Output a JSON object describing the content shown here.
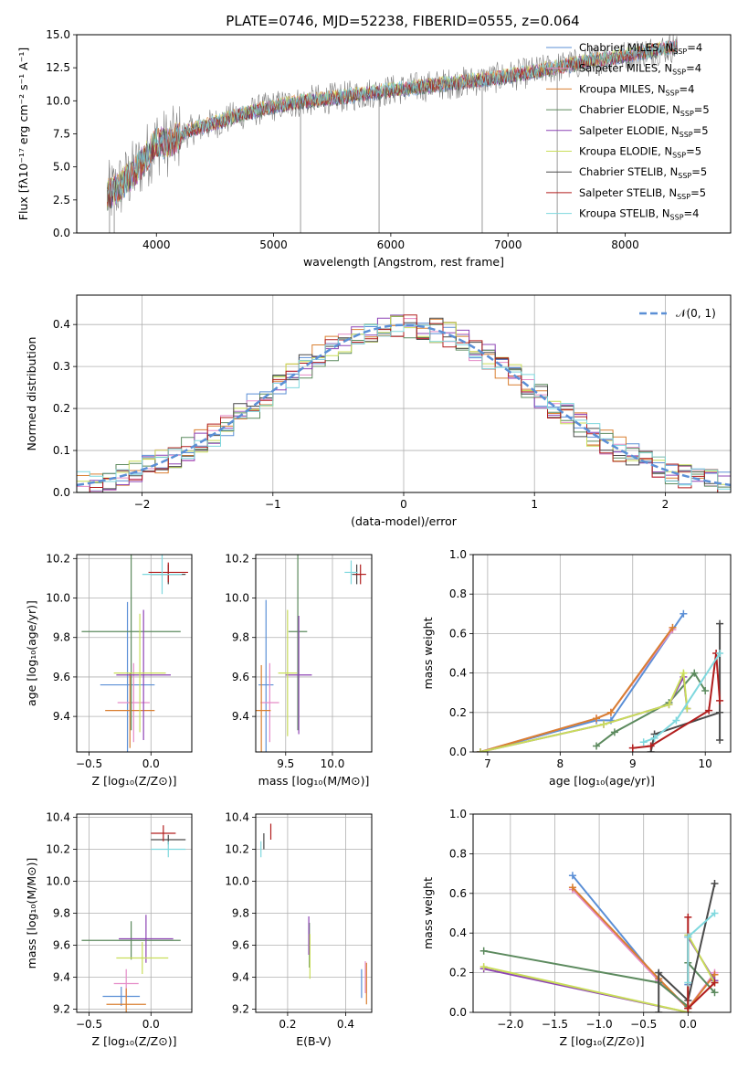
{
  "figure_title": "PLATE=0746, MJD=52238, FIBERID=0555, z=0.064",
  "colors": {
    "chabrier_miles": "#5b8fd6",
    "salpeter_miles": "#e58cc8",
    "kroupa_miles": "#d97f30",
    "chabrier_elodie": "#5c8a5e",
    "salpeter_elodie": "#8e44b5",
    "kroupa_elodie": "#c9dd59",
    "chabrier_stelib": "#4a4a4a",
    "salpeter_stelib": "#b21e1e",
    "kroupa_stelib": "#7fd8de",
    "data_spectrum": "#808080",
    "grid": "#b0b0b0"
  },
  "chart_data": [
    {
      "id": "spectrum",
      "type": "line",
      "title": "PLATE=0746, MJD=52238, FIBERID=0555, z=0.064",
      "xlabel": "wavelength [Angstrom, rest frame]",
      "ylabel": "Flux [fλ10⁻¹⁷ erg cm⁻² s⁻¹ A⁻¹]",
      "xlim": [
        3320,
        8900
      ],
      "ylim": [
        0,
        15
      ],
      "xticks": [
        4000,
        5000,
        6000,
        7000,
        8000
      ],
      "yticks": [
        0.0,
        2.5,
        5.0,
        7.5,
        10.0,
        12.5,
        15.0
      ],
      "ytick_labels": [
        "0.0",
        "2.5",
        "5.0",
        "7.5",
        "10.0",
        "12.5",
        "15.0"
      ],
      "grid": false,
      "legend_position": "right",
      "x_range_observed": [
        3580,
        8450
      ],
      "continuum": {
        "x": [
          3580,
          3700,
          3800,
          3900,
          4000,
          4100,
          4300,
          4500,
          4700,
          5000,
          5300,
          5600,
          5900,
          6200,
          6500,
          6800,
          7100,
          7400,
          7700,
          8000,
          8300,
          8450
        ],
        "y": [
          2.8,
          3.6,
          4.5,
          5.6,
          6.9,
          6.8,
          7.8,
          8.3,
          8.9,
          9.6,
          10.0,
          10.3,
          10.7,
          11.0,
          11.3,
          11.6,
          12.0,
          12.5,
          13.0,
          13.4,
          13.9,
          14.1
        ]
      },
      "series": [
        {
          "name": "Chabrier MILES, N_SSP=4",
          "color_key": "chabrier_miles"
        },
        {
          "name": "Salpeter MILES, N_SSP=4",
          "color_key": "salpeter_miles"
        },
        {
          "name": "Kroupa MILES, N_SSP=4",
          "color_key": "kroupa_miles"
        },
        {
          "name": "Chabrier ELODIE, N_SSP=5",
          "color_key": "chabrier_elodie"
        },
        {
          "name": "Salpeter ELODIE, N_SSP=5",
          "color_key": "salpeter_elodie"
        },
        {
          "name": "Kroupa ELODIE, N_SSP=5",
          "color_key": "kroupa_elodie"
        },
        {
          "name": "Chabrier STELIB, N_SSP=5",
          "color_key": "chabrier_stelib"
        },
        {
          "name": "Salpeter STELIB, N_SSP=5",
          "color_key": "salpeter_stelib"
        },
        {
          "name": "Kroupa STELIB, N_SSP=4",
          "color_key": "kroupa_stelib"
        }
      ],
      "legend_labels": [
        {
          "pre": "Chabrier MILES, N",
          "sub": "SSP",
          "post": "=4"
        },
        {
          "pre": "Salpeter MILES, N",
          "sub": "SSP",
          "post": "=4"
        },
        {
          "pre": "Kroupa MILES, N",
          "sub": "SSP",
          "post": "=4"
        },
        {
          "pre": "Chabrier ELODIE, N",
          "sub": "SSP",
          "post": "=5"
        },
        {
          "pre": "Salpeter ELODIE, N",
          "sub": "SSP",
          "post": "=5"
        },
        {
          "pre": "Kroupa ELODIE, N",
          "sub": "SSP",
          "post": "=5"
        },
        {
          "pre": "Chabrier STELIB, N",
          "sub": "SSP",
          "post": "=5"
        },
        {
          "pre": "Salpeter STELIB, N",
          "sub": "SSP",
          "post": "=5"
        },
        {
          "pre": "Kroupa STELIB, N",
          "sub": "SSP",
          "post": "=4"
        }
      ]
    },
    {
      "id": "residuals",
      "type": "line",
      "xlabel": "(data-model)/error",
      "ylabel": "Normed distribution",
      "xlim": [
        -2.5,
        2.5
      ],
      "ylim": [
        0,
        0.47
      ],
      "xticks": [
        -2,
        -1,
        0,
        1,
        2
      ],
      "xtick_labels": [
        "−2",
        "−1",
        "0",
        "1",
        "2"
      ],
      "yticks": [
        0.0,
        0.1,
        0.2,
        0.3,
        0.4
      ],
      "ytick_labels": [
        "0.0",
        "0.1",
        "0.2",
        "0.3",
        "0.4"
      ],
      "grid": true,
      "legend_position": "top-right",
      "gaussian_label": "𝒩(0, 1)",
      "bin_width": 0.1
    },
    {
      "id": "age_vs_Z",
      "type": "scatter",
      "xlabel": "Z [log₁₀(Z/Z⊙)]",
      "ylabel": "age  [log₁₀(age/yr)]",
      "xlim": [
        -0.6,
        0.33
      ],
      "ylim": [
        9.22,
        10.22
      ],
      "xticks": [
        -0.5,
        0.0
      ],
      "xtick_labels": [
        "−0.5",
        "0.0"
      ],
      "yticks": [
        9.4,
        9.6,
        9.8,
        10.0,
        10.2
      ],
      "ytick_labels": [
        "9.4",
        "9.6",
        "9.8",
        "10.0",
        "10.2"
      ],
      "grid": true,
      "points": [
        {
          "c": "chabrier_miles",
          "x": -0.19,
          "xe": 0.22,
          "y": 9.56,
          "ye": 0.42
        },
        {
          "c": "salpeter_miles",
          "x": -0.14,
          "xe": 0.13,
          "y": 9.47,
          "ye": 0.2
        },
        {
          "c": "kroupa_miles",
          "x": -0.17,
          "xe": 0.2,
          "y": 9.43,
          "ye": 0.19
        },
        {
          "c": "chabrier_elodie",
          "x": -0.16,
          "xe": 0.4,
          "y": 9.83,
          "ye": 0.5
        },
        {
          "c": "salpeter_elodie",
          "x": -0.06,
          "xe": 0.22,
          "y": 9.61,
          "ye": 0.33
        },
        {
          "c": "kroupa_elodie",
          "x": -0.09,
          "xe": 0.21,
          "y": 9.62,
          "ye": 0.3
        },
        {
          "c": "chabrier_stelib",
          "x": 0.14,
          "xe": 0.14,
          "y": 10.12,
          "ye": 0.05
        },
        {
          "c": "salpeter_stelib",
          "x": 0.14,
          "xe": 0.16,
          "y": 10.13,
          "ye": 0.05
        },
        {
          "c": "kroupa_stelib",
          "x": 0.09,
          "xe": 0.16,
          "y": 10.12,
          "ye": 0.1
        }
      ]
    },
    {
      "id": "age_vs_mass",
      "type": "scatter",
      "xlabel": "mass [log₁₀(M/M⊙)]",
      "ylabel": "",
      "xlim": [
        9.18,
        10.42
      ],
      "ylim": [
        9.22,
        10.22
      ],
      "xticks": [
        9.5,
        10.0
      ],
      "xtick_labels": [
        "9.5",
        "10.0"
      ],
      "yticks": [
        9.4,
        9.6,
        9.8,
        10.0,
        10.2
      ],
      "ytick_labels": [
        "9.4",
        "9.6",
        "9.8",
        "10.0",
        "10.2"
      ],
      "grid": true,
      "points": [
        {
          "c": "chabrier_miles",
          "x": 9.29,
          "xe": 0.08,
          "y": 9.56,
          "ye": 0.43
        },
        {
          "c": "salpeter_miles",
          "x": 9.33,
          "xe": 0.1,
          "y": 9.47,
          "ye": 0.2
        },
        {
          "c": "kroupa_miles",
          "x": 9.24,
          "xe": 0.1,
          "y": 9.43,
          "ye": 0.23
        },
        {
          "c": "chabrier_elodie",
          "x": 9.63,
          "xe": 0.1,
          "y": 9.83,
          "ye": 0.5
        },
        {
          "c": "salpeter_elodie",
          "x": 9.64,
          "xe": 0.14,
          "y": 9.61,
          "ye": 0.3
        },
        {
          "c": "kroupa_elodie",
          "x": 9.52,
          "xe": 0.1,
          "y": 9.62,
          "ye": 0.32
        },
        {
          "c": "chabrier_stelib",
          "x": 10.26,
          "xe": 0.05,
          "y": 10.12,
          "ye": 0.05
        },
        {
          "c": "salpeter_stelib",
          "x": 10.3,
          "xe": 0.06,
          "y": 10.12,
          "ye": 0.05
        },
        {
          "c": "kroupa_stelib",
          "x": 10.2,
          "xe": 0.07,
          "y": 10.13,
          "ye": 0.06
        }
      ]
    },
    {
      "id": "weight_vs_age",
      "type": "line",
      "xlabel": "age  [log₁₀(age/yr)]",
      "ylabel": "mass weight",
      "xlim": [
        6.8,
        10.35
      ],
      "ylim": [
        0,
        1
      ],
      "xticks": [
        7,
        8,
        9,
        10
      ],
      "xtick_labels": [
        "7",
        "8",
        "9",
        "10"
      ],
      "yticks": [
        0.0,
        0.2,
        0.4,
        0.6,
        0.8,
        1.0
      ],
      "ytick_labels": [
        "0.0",
        "0.2",
        "0.4",
        "0.6",
        "0.8",
        "1.0"
      ],
      "grid": true,
      "series": [
        {
          "c": "chabrier_miles",
          "x": [
            6.9,
            8.5,
            8.7,
            9.7
          ],
          "y": [
            0.0,
            0.16,
            0.16,
            0.7
          ]
        },
        {
          "c": "salpeter_miles",
          "x": [
            6.9,
            8.5,
            8.7,
            9.55
          ],
          "y": [
            0.0,
            0.17,
            0.2,
            0.62
          ]
        },
        {
          "c": "kroupa_miles",
          "x": [
            6.9,
            8.5,
            8.7,
            9.55
          ],
          "y": [
            0.0,
            0.17,
            0.2,
            0.63
          ]
        },
        {
          "c": "chabrier_elodie",
          "x": [
            8.5,
            8.75,
            9.5,
            9.85,
            10.0
          ],
          "y": [
            0.03,
            0.1,
            0.25,
            0.4,
            0.31
          ]
        },
        {
          "c": "salpeter_elodie",
          "x": [
            6.9,
            8.6,
            9.5,
            9.7,
            9.75
          ],
          "y": [
            0.0,
            0.14,
            0.24,
            0.38,
            0.22
          ]
        },
        {
          "c": "kroupa_elodie",
          "x": [
            6.9,
            8.6,
            9.5,
            9.7,
            9.75
          ],
          "y": [
            0.0,
            0.14,
            0.24,
            0.4,
            0.22
          ]
        },
        {
          "c": "chabrier_stelib",
          "x": [
            9.25,
            9.3,
            10.2,
            10.2,
            10.2
          ],
          "y": [
            0.0,
            0.09,
            0.2,
            0.65,
            0.06
          ]
        },
        {
          "c": "salpeter_stelib",
          "x": [
            9.0,
            9.25,
            10.05,
            10.15,
            10.2
          ],
          "y": [
            0.02,
            0.03,
            0.21,
            0.5,
            0.26
          ]
        },
        {
          "c": "kroupa_stelib",
          "x": [
            9.15,
            9.3,
            9.6,
            10.2
          ],
          "y": [
            0.05,
            0.07,
            0.16,
            0.5
          ]
        }
      ]
    },
    {
      "id": "mass_vs_Z",
      "type": "scatter",
      "xlabel": "Z [log₁₀(Z/Z⊙)]",
      "ylabel": "mass [log₁₀(M/M⊙)]",
      "xlim": [
        -0.6,
        0.33
      ],
      "ylim": [
        9.18,
        10.42
      ],
      "xticks": [
        -0.5,
        0.0
      ],
      "xtick_labels": [
        "−0.5",
        "0.0"
      ],
      "yticks": [
        9.2,
        9.4,
        9.6,
        9.8,
        10.0,
        10.2,
        10.4
      ],
      "ytick_labels": [
        "9.2",
        "9.4",
        "9.6",
        "9.8",
        "10.0",
        "10.2",
        "10.4"
      ],
      "grid": true,
      "points": [
        {
          "c": "chabrier_miles",
          "x": -0.24,
          "xe": 0.15,
          "y": 9.28,
          "ye": 0.06
        },
        {
          "c": "salpeter_miles",
          "x": -0.2,
          "xe": 0.1,
          "y": 9.36,
          "ye": 0.09
        },
        {
          "c": "kroupa_miles",
          "x": -0.2,
          "xe": 0.16,
          "y": 9.23,
          "ye": 0.1
        },
        {
          "c": "chabrier_elodie",
          "x": -0.16,
          "xe": 0.4,
          "y": 9.63,
          "ye": 0.12
        },
        {
          "c": "salpeter_elodie",
          "x": -0.04,
          "xe": 0.22,
          "y": 9.64,
          "ye": 0.15
        },
        {
          "c": "kroupa_elodie",
          "x": -0.07,
          "xe": 0.21,
          "y": 9.52,
          "ye": 0.1
        },
        {
          "c": "chabrier_stelib",
          "x": 0.14,
          "xe": 0.14,
          "y": 10.26,
          "ye": 0.03
        },
        {
          "c": "salpeter_stelib",
          "x": 0.1,
          "xe": 0.1,
          "y": 10.3,
          "ye": 0.05
        },
        {
          "c": "kroupa_stelib",
          "x": 0.14,
          "xe": 0.14,
          "y": 10.2,
          "ye": 0.05
        }
      ]
    },
    {
      "id": "mass_vs_EBV",
      "type": "scatter",
      "xlabel": "E(B-V)",
      "ylabel": "",
      "xlim": [
        0.09,
        0.49
      ],
      "ylim": [
        9.18,
        10.42
      ],
      "xticks": [
        0.2,
        0.4
      ],
      "xtick_labels": [
        "0.2",
        "0.4"
      ],
      "yticks": [
        9.2,
        9.4,
        9.6,
        9.8,
        10.0,
        10.2,
        10.4
      ],
      "ytick_labels": [
        "9.2",
        "9.4",
        "9.6",
        "9.8",
        "10.0",
        "10.2",
        "10.4"
      ],
      "grid": true,
      "points": [
        {
          "c": "chabrier_miles",
          "x": 0.455,
          "xe": 0.0,
          "y": 9.36,
          "ye": 0.09
        },
        {
          "c": "salpeter_miles",
          "x": 0.468,
          "xe": 0.0,
          "y": 9.4,
          "ye": 0.1
        },
        {
          "c": "kroupa_miles",
          "x": 0.472,
          "xe": 0.0,
          "y": 9.36,
          "ye": 0.13
        },
        {
          "c": "chabrier_elodie",
          "x": 0.275,
          "xe": 0.0,
          "y": 9.6,
          "ye": 0.14
        },
        {
          "c": "salpeter_elodie",
          "x": 0.273,
          "xe": 0.0,
          "y": 9.66,
          "ye": 0.12
        },
        {
          "c": "kroupa_elodie",
          "x": 0.277,
          "xe": 0.0,
          "y": 9.53,
          "ye": 0.14
        },
        {
          "c": "chabrier_stelib",
          "x": 0.118,
          "xe": 0.0,
          "y": 10.25,
          "ye": 0.05
        },
        {
          "c": "salpeter_stelib",
          "x": 0.142,
          "xe": 0.0,
          "y": 10.31,
          "ye": 0.05
        },
        {
          "c": "kroupa_stelib",
          "x": 0.108,
          "xe": 0.0,
          "y": 10.2,
          "ye": 0.05
        }
      ]
    },
    {
      "id": "weight_vs_Z",
      "type": "line",
      "xlabel": "Z [log₁₀(Z/Z⊙)]",
      "ylabel": "mass weight",
      "xlim": [
        -2.42,
        0.48
      ],
      "ylim": [
        0,
        1
      ],
      "xticks": [
        -2.0,
        -1.5,
        -1.0,
        -0.5,
        0.0
      ],
      "xtick_labels": [
        "−2.0",
        "−1.5",
        "−1.0",
        "−0.5",
        "0.0"
      ],
      "yticks": [
        0.0,
        0.2,
        0.4,
        0.6,
        0.8,
        1.0
      ],
      "ytick_labels": [
        "0.0",
        "0.2",
        "0.4",
        "0.6",
        "0.8",
        "1.0"
      ],
      "grid": true,
      "series": [
        {
          "c": "chabrier_miles",
          "x": [
            -1.3,
            -0.33,
            0.0,
            0.0
          ],
          "y": [
            0.69,
            0.16,
            0.02,
            0.14
          ]
        },
        {
          "c": "salpeter_miles",
          "x": [
            -1.3,
            -0.33,
            0.0,
            0.3
          ],
          "y": [
            0.62,
            0.16,
            0.02,
            0.2
          ]
        },
        {
          "c": "kroupa_miles",
          "x": [
            -1.3,
            -0.33,
            0.0,
            0.3
          ],
          "y": [
            0.63,
            0.17,
            0.02,
            0.19
          ]
        },
        {
          "c": "chabrier_elodie",
          "x": [
            -2.3,
            -0.33,
            0.0,
            0.0,
            0.3
          ],
          "y": [
            0.31,
            0.15,
            0.03,
            0.25,
            0.1
          ]
        },
        {
          "c": "salpeter_elodie",
          "x": [
            -2.3,
            0.0,
            0.0,
            0.3
          ],
          "y": [
            0.22,
            0.0,
            0.38,
            0.16
          ]
        },
        {
          "c": "kroupa_elodie",
          "x": [
            -2.3,
            0.0,
            0.0,
            0.3
          ],
          "y": [
            0.23,
            0.0,
            0.39,
            0.15
          ]
        },
        {
          "c": "chabrier_stelib",
          "x": [
            -0.33,
            -0.33,
            0.0,
            0.3
          ],
          "y": [
            0.0,
            0.2,
            0.06,
            0.65
          ]
        },
        {
          "c": "salpeter_stelib",
          "x": [
            0.0,
            0.0,
            0.3
          ],
          "y": [
            0.48,
            0.02,
            0.15
          ]
        },
        {
          "c": "kroupa_stelib",
          "x": [
            0.0,
            0.0,
            0.3
          ],
          "y": [
            0.15,
            0.38,
            0.5
          ]
        }
      ]
    }
  ]
}
